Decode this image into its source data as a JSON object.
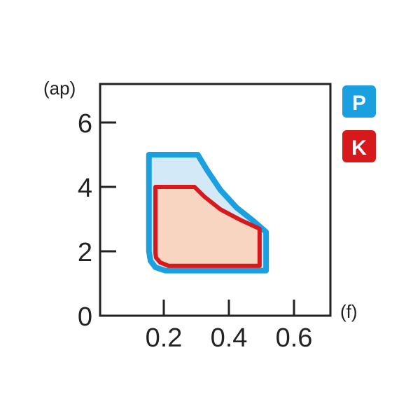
{
  "chart_data": {
    "type": "area",
    "xlabel": "(f)",
    "ylabel": "(ap)",
    "xlim": [
      0,
      0.7
    ],
    "ylim": [
      0,
      7
    ],
    "xticks": [
      "0.2",
      "0.4",
      "0.6"
    ],
    "xtick_values": [
      0.2,
      0.4,
      0.6
    ],
    "yticks": [
      "0",
      "2",
      "4",
      "6"
    ],
    "ytick_values": [
      0,
      2,
      4,
      6
    ],
    "grid": false,
    "legend_position": "right",
    "series": [
      {
        "name": "P",
        "color": "#1a9fe0",
        "fill": "#d3e9f8",
        "boundary": [
          [
            0.15,
            5.0
          ],
          [
            0.3,
            5.0
          ],
          [
            0.33,
            4.5
          ],
          [
            0.37,
            3.9
          ],
          [
            0.42,
            3.35
          ],
          [
            0.47,
            2.95
          ],
          [
            0.51,
            2.6
          ],
          [
            0.51,
            1.4
          ],
          [
            0.2,
            1.4
          ],
          [
            0.17,
            1.5
          ],
          [
            0.155,
            1.7
          ],
          [
            0.15,
            2.0
          ]
        ]
      },
      {
        "name": "K",
        "color": "#d7191c",
        "fill": "#f8d5c0",
        "boundary": [
          [
            0.17,
            4.0
          ],
          [
            0.29,
            4.0
          ],
          [
            0.32,
            3.7
          ],
          [
            0.37,
            3.3
          ],
          [
            0.43,
            2.98
          ],
          [
            0.49,
            2.7
          ],
          [
            0.49,
            1.55
          ],
          [
            0.21,
            1.55
          ],
          [
            0.185,
            1.65
          ],
          [
            0.172,
            1.8
          ],
          [
            0.17,
            1.95
          ]
        ]
      }
    ]
  }
}
